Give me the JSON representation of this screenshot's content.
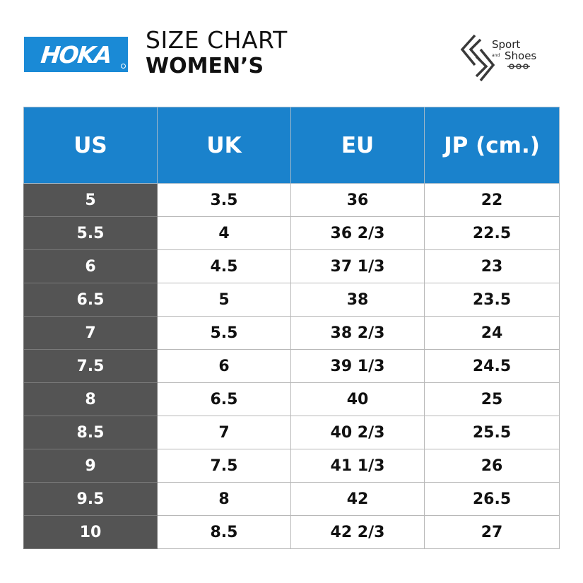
{
  "brand": {
    "logo_text": "HOKA"
  },
  "title": {
    "line1": "SIZE CHART",
    "line2": "WOMEN’S"
  },
  "store_logo": {
    "line1": "Sport",
    "line2": "and",
    "line3": "Shoes"
  },
  "colors": {
    "header_bg": "#1a82cc",
    "us_column_bg": "#545454",
    "logo_bg": "#1a8ad6"
  },
  "table": {
    "headers": [
      "US",
      "UK",
      "EU",
      "JP (cm.)"
    ],
    "rows": [
      [
        "5",
        "3.5",
        "36",
        "22"
      ],
      [
        "5.5",
        "4",
        "36 2/3",
        "22.5"
      ],
      [
        "6",
        "4.5",
        "37 1/3",
        "23"
      ],
      [
        "6.5",
        "5",
        "38",
        "23.5"
      ],
      [
        "7",
        "5.5",
        "38 2/3",
        "24"
      ],
      [
        "7.5",
        "6",
        "39 1/3",
        "24.5"
      ],
      [
        "8",
        "6.5",
        "40",
        "25"
      ],
      [
        "8.5",
        "7",
        "40 2/3",
        "25.5"
      ],
      [
        "9",
        "7.5",
        "41 1/3",
        "26"
      ],
      [
        "9.5",
        "8",
        "42",
        "26.5"
      ],
      [
        "10",
        "8.5",
        "42 2/3",
        "27"
      ]
    ]
  }
}
